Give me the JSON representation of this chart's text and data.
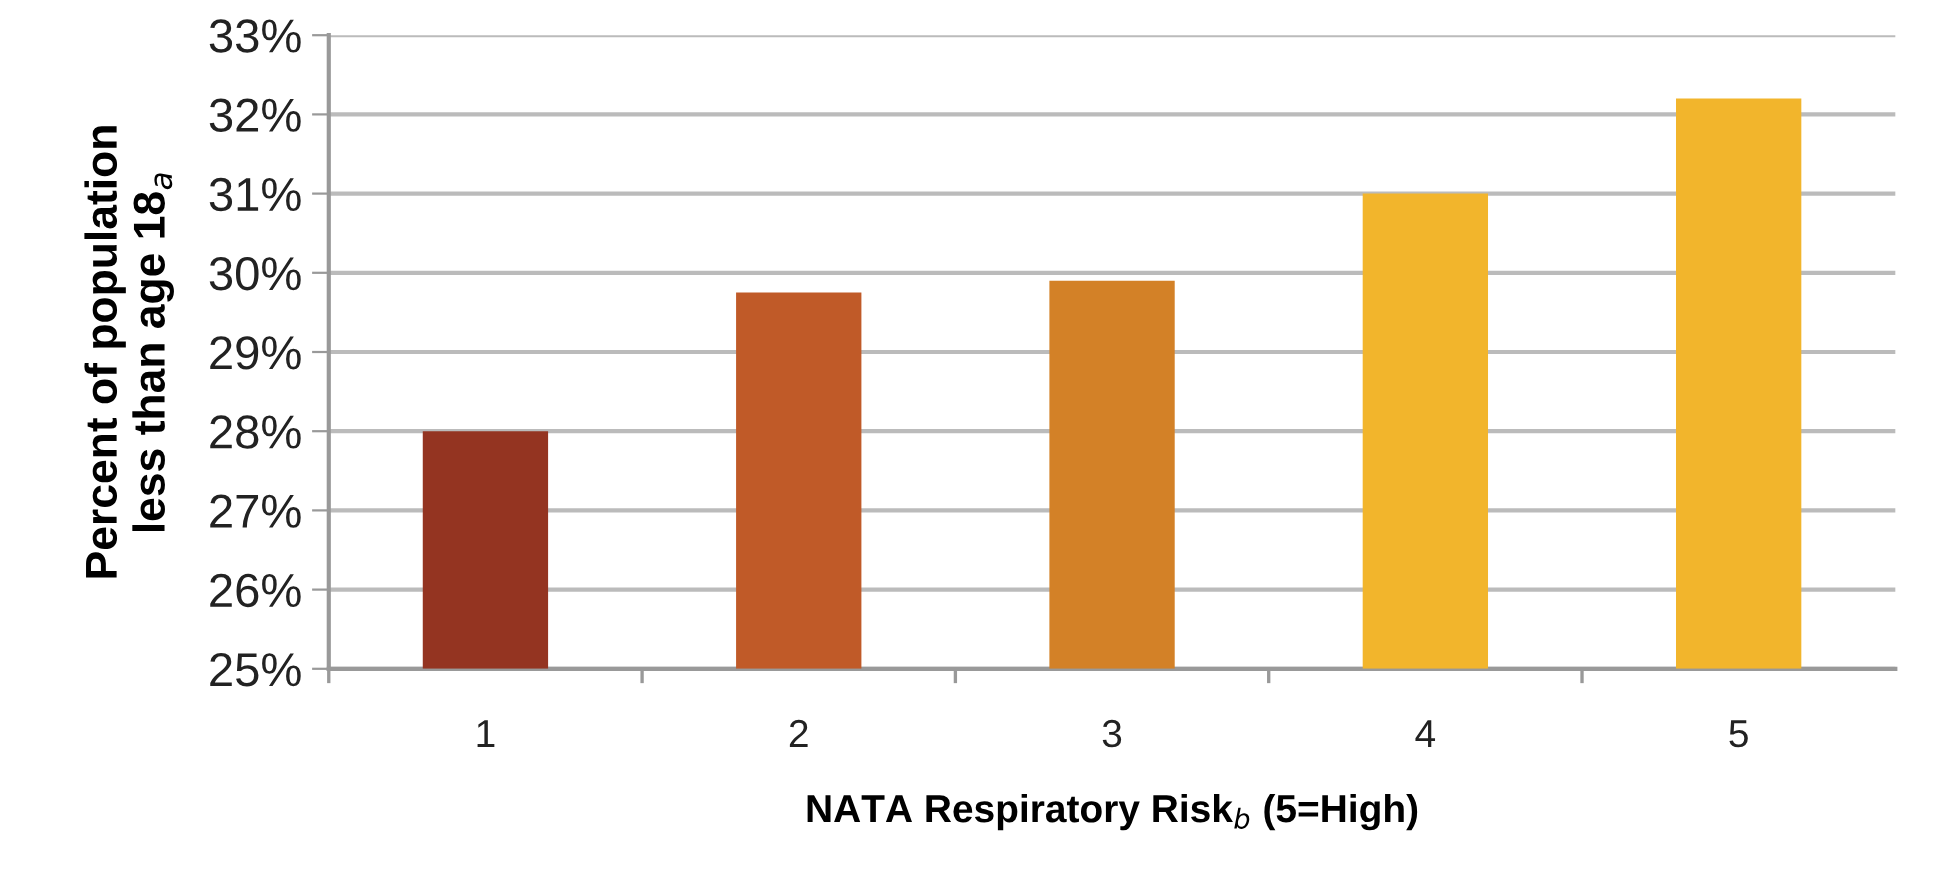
{
  "chart_data": {
    "type": "bar",
    "xlabel": "NATA Respiratory Risk$_{b}$ (5=High)",
    "ylabel": "Percent of population\nless than age 18$_{a}$",
    "categories": [
      "1",
      "2",
      "3",
      "4",
      "5"
    ],
    "values": [
      28.0,
      29.75,
      29.9,
      31.0,
      32.2
    ],
    "colors": [
      "#943421",
      "#c05a28",
      "#d38127",
      "#f2b52c",
      "#f2b52c"
    ],
    "ylim": [
      25,
      33
    ],
    "yticks": [
      {
        "value": 25,
        "label": "25%"
      },
      {
        "value": 26,
        "label": "26%"
      },
      {
        "value": 27,
        "label": "27%"
      },
      {
        "value": 28,
        "label": "28%"
      },
      {
        "value": 29,
        "label": "29%"
      },
      {
        "value": 30,
        "label": "30%"
      },
      {
        "value": 31,
        "label": "31%"
      },
      {
        "value": 32,
        "label": "32%"
      },
      {
        "value": 33,
        "label": "33%"
      }
    ],
    "grid": "y"
  }
}
